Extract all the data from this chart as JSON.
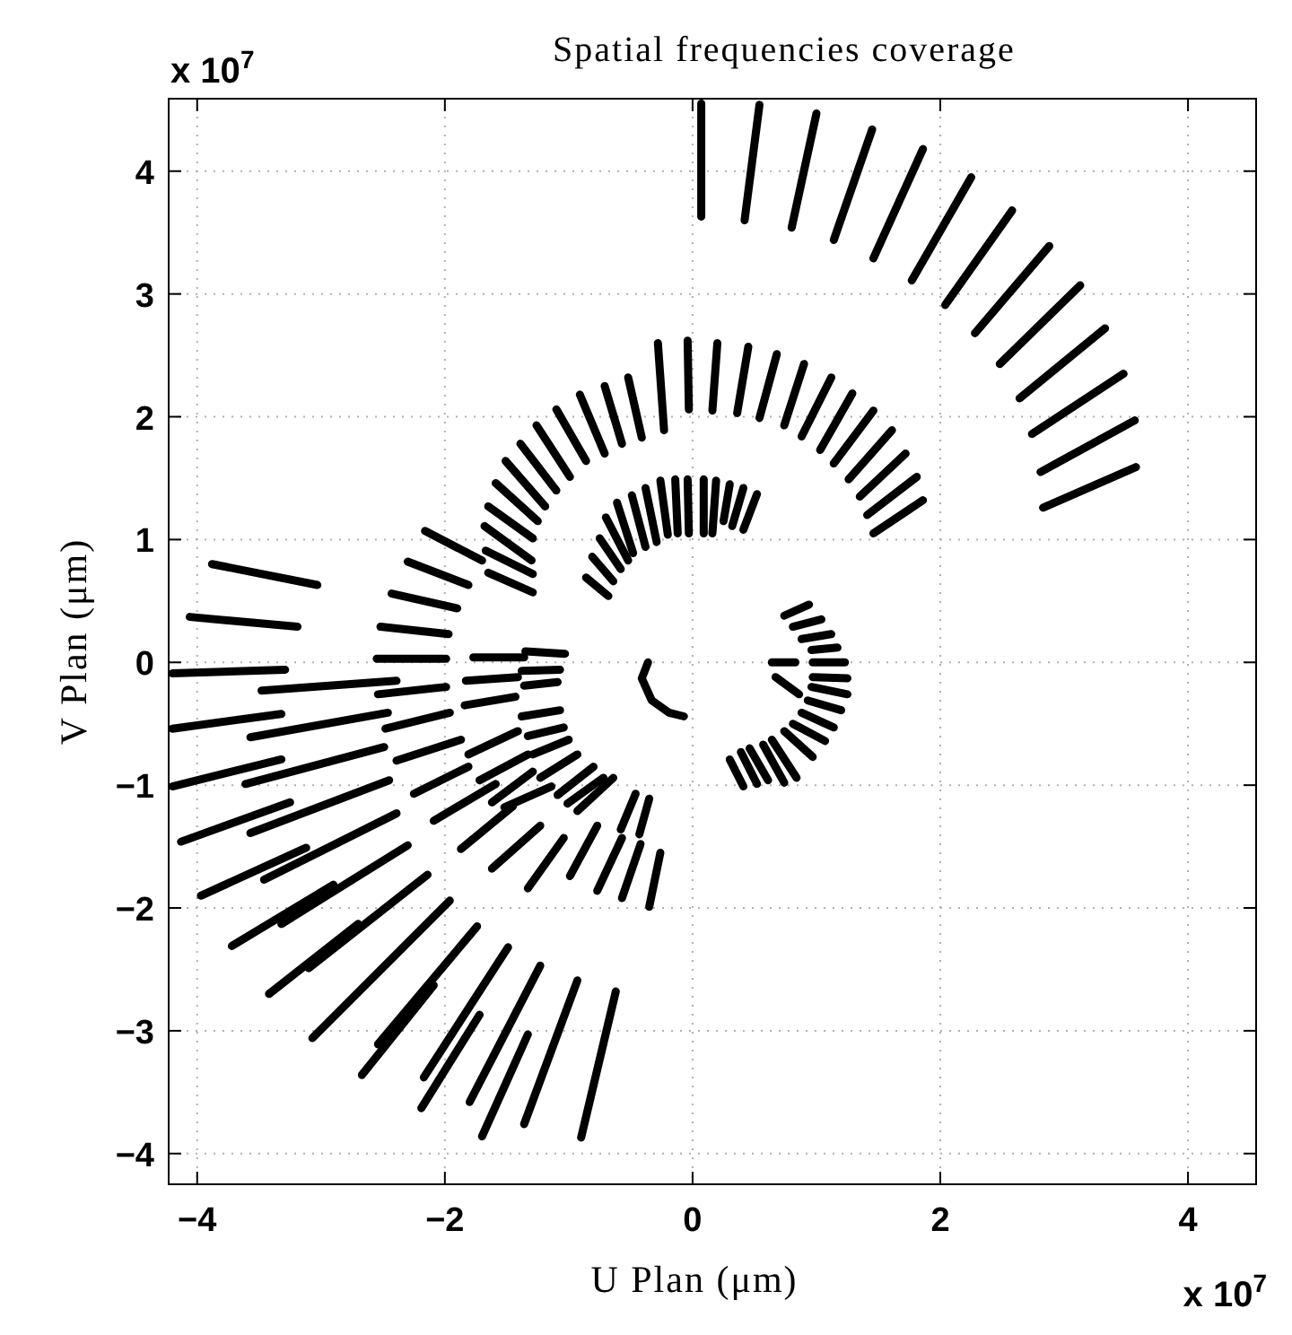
{
  "chart_data": {
    "type": "line",
    "title": "Spatial frequencies coverage",
    "xlabel": "U Plan (μm)",
    "ylabel": "V Plan (μm)",
    "annotations": [
      "x 10$^{7}$",
      "x 10$^{7}$"
    ],
    "xlim": [
      -4.23,
      4.55
    ],
    "ylim": [
      -4.25,
      4.59
    ],
    "xticks": [
      {
        "value": -4,
        "label": "−4"
      },
      {
        "value": -2,
        "label": "−2"
      },
      0,
      2,
      4
    ],
    "yticks": [
      {
        "value": -4,
        "label": "−4"
      },
      {
        "value": -3,
        "label": "−3"
      },
      {
        "value": -2,
        "label": "−2"
      },
      {
        "value": -1,
        "label": "−1"
      },
      0,
      1,
      2,
      3,
      4
    ],
    "grid": true,
    "marker": "none",
    "line_style": "solid",
    "color": "#000000",
    "series": [
      {
        "x": [
          0.07,
          0.07
        ],
        "values": [
          4.55,
          3.63
        ]
      },
      {
        "x": [
          0.54,
          0.42
        ],
        "values": [
          4.54,
          3.6
        ]
      },
      {
        "x": [
          1.0,
          0.8
        ],
        "values": [
          4.47,
          3.54
        ]
      },
      {
        "x": [
          1.45,
          1.14
        ],
        "values": [
          4.34,
          3.44
        ]
      },
      {
        "x": [
          1.86,
          1.46
        ],
        "values": [
          4.18,
          3.29
        ]
      },
      {
        "x": [
          2.25,
          1.77
        ],
        "values": [
          3.95,
          3.11
        ]
      },
      {
        "x": [
          2.58,
          2.04
        ],
        "values": [
          3.68,
          2.91
        ]
      },
      {
        "x": [
          2.88,
          2.28
        ],
        "values": [
          3.39,
          2.68
        ]
      },
      {
        "x": [
          3.13,
          2.48
        ],
        "values": [
          3.07,
          2.43
        ]
      },
      {
        "x": [
          3.33,
          2.64
        ],
        "values": [
          2.72,
          2.15
        ]
      },
      {
        "x": [
          3.48,
          2.74
        ],
        "values": [
          2.35,
          1.86
        ]
      },
      {
        "x": [
          3.57,
          2.81
        ],
        "values": [
          1.97,
          1.55
        ]
      },
      {
        "x": [
          3.58,
          2.83
        ],
        "values": [
          1.59,
          1.26
        ]
      },
      {
        "x": [
          -0.04,
          -0.03
        ],
        "values": [
          2.62,
          2.06
        ]
      },
      {
        "x": [
          0.2,
          0.16
        ],
        "values": [
          2.6,
          2.05
        ]
      },
      {
        "x": [
          0.45,
          0.36
        ],
        "values": [
          2.57,
          2.03
        ]
      },
      {
        "x": [
          0.68,
          0.54
        ],
        "values": [
          2.51,
          1.99
        ]
      },
      {
        "x": [
          0.9,
          0.74
        ],
        "values": [
          2.43,
          1.93
        ]
      },
      {
        "x": [
          1.12,
          0.88
        ],
        "values": [
          2.32,
          1.84
        ]
      },
      {
        "x": [
          1.29,
          1.03
        ],
        "values": [
          2.19,
          1.73
        ]
      },
      {
        "x": [
          1.46,
          1.14
        ],
        "values": [
          2.05,
          1.62
        ]
      },
      {
        "x": [
          1.61,
          1.26
        ],
        "values": [
          1.89,
          1.49
        ]
      },
      {
        "x": [
          1.72,
          1.35
        ],
        "values": [
          1.7,
          1.35
        ]
      },
      {
        "x": [
          1.81,
          1.41
        ],
        "values": [
          1.51,
          1.2
        ]
      },
      {
        "x": [
          1.86,
          1.46
        ],
        "values": [
          1.32,
          1.05
        ]
      },
      {
        "x": [
          -0.28,
          -0.23
        ],
        "values": [
          2.6,
          1.89
        ]
      },
      {
        "x": [
          -0.52,
          -0.41
        ],
        "values": [
          2.32,
          1.83
        ]
      },
      {
        "x": [
          -0.71,
          -0.57
        ],
        "values": [
          2.25,
          1.78
        ]
      },
      {
        "x": [
          -0.91,
          -0.71
        ],
        "values": [
          2.18,
          1.7
        ]
      },
      {
        "x": [
          -1.1,
          -0.86
        ],
        "values": [
          2.06,
          1.64
        ]
      },
      {
        "x": [
          -1.26,
          -0.99
        ],
        "values": [
          1.93,
          1.51
        ]
      },
      {
        "x": [
          -1.39,
          -1.1
        ],
        "values": [
          1.78,
          1.4
        ]
      },
      {
        "x": [
          -1.51,
          -1.19
        ],
        "values": [
          1.64,
          1.27
        ]
      },
      {
        "x": [
          -1.59,
          -1.25
        ],
        "values": [
          1.46,
          1.15
        ]
      },
      {
        "x": [
          -1.65,
          -1.29
        ],
        "values": [
          1.27,
          1.01
        ]
      },
      {
        "x": [
          -1.68,
          -1.3
        ],
        "values": [
          1.11,
          0.83
        ]
      },
      {
        "x": [
          -1.67,
          -1.29
        ],
        "values": [
          0.91,
          0.72
        ]
      },
      {
        "x": [
          -1.65,
          -1.29
        ],
        "values": [
          0.73,
          0.57
        ]
      },
      {
        "x": [
          -2.16,
          -1.7
        ],
        "values": [
          1.07,
          0.83
        ]
      },
      {
        "x": [
          -2.3,
          -1.81
        ],
        "values": [
          0.82,
          0.63
        ]
      },
      {
        "x": [
          -2.43,
          -1.9
        ],
        "values": [
          0.56,
          0.44
        ]
      },
      {
        "x": [
          -2.52,
          -1.97
        ],
        "values": [
          0.29,
          0.23
        ]
      },
      {
        "x": [
          -2.55,
          -1.99
        ],
        "values": [
          0.03,
          0.03
        ]
      },
      {
        "x": [
          -1.77,
          -1.36
        ],
        "values": [
          0.04,
          0.04
        ]
      },
      {
        "x": [
          -1.35,
          -1.03
        ],
        "values": [
          0.09,
          0.07
        ]
      },
      {
        "x": [
          -3.88,
          -3.03
        ],
        "values": [
          0.8,
          0.63
        ]
      },
      {
        "x": [
          -4.06,
          -3.19
        ],
        "values": [
          0.37,
          0.29
        ]
      },
      {
        "x": [
          -0.04,
          -0.03
        ],
        "values": [
          1.49,
          1.05
        ]
      },
      {
        "x": [
          0.09,
          0.09
        ],
        "values": [
          1.49,
          1.05
        ]
      },
      {
        "x": [
          0.19,
          0.16
        ],
        "values": [
          1.48,
          1.05
        ]
      },
      {
        "x": [
          0.3,
          0.25
        ],
        "values": [
          1.45,
          1.15
        ]
      },
      {
        "x": [
          0.41,
          0.32
        ],
        "values": [
          1.42,
          1.11
        ]
      },
      {
        "x": [
          0.52,
          0.41
        ],
        "values": [
          1.37,
          1.08
        ]
      },
      {
        "x": [
          -0.14,
          -0.12
        ],
        "values": [
          1.49,
          1.05
        ]
      },
      {
        "x": [
          -0.26,
          -0.2
        ],
        "values": [
          1.48,
          1.04
        ]
      },
      {
        "x": [
          -0.38,
          -0.29
        ],
        "values": [
          1.42,
          0.98
        ]
      },
      {
        "x": [
          -0.49,
          -0.38
        ],
        "values": [
          1.36,
          0.94
        ]
      },
      {
        "x": [
          -0.61,
          -0.48
        ],
        "values": [
          1.3,
          0.89
        ]
      },
      {
        "x": [
          -0.7,
          -0.52
        ],
        "values": [
          1.18,
          0.83
        ]
      },
      {
        "x": [
          -0.75,
          -0.58
        ],
        "values": [
          1.01,
          0.76
        ]
      },
      {
        "x": [
          -0.81,
          -0.64
        ],
        "values": [
          0.86,
          0.66
        ]
      },
      {
        "x": [
          -0.86,
          -0.68
        ],
        "values": [
          0.69,
          0.54
        ]
      },
      {
        "x": [
          -0.36,
          -0.41,
          -0.33,
          -0.19,
          -0.07
        ],
        "values": [
          0,
          -0.13,
          -0.31,
          -0.41,
          -0.44
        ]
      },
      {
        "x": [
          0.74,
          0.94
        ],
        "values": [
          0.38,
          0.47
        ]
      },
      {
        "x": [
          0.81,
          1.04
        ],
        "values": [
          0.29,
          0.35
        ]
      },
      {
        "x": [
          0.88,
          1.12
        ],
        "values": [
          0.19,
          0.23
        ]
      },
      {
        "x": [
          0.96,
          1.17
        ],
        "values": [
          0.1,
          0.12
        ]
      },
      {
        "x": [
          0.97,
          1.23
        ],
        "values": [
          0,
          0
        ]
      },
      {
        "x": [
          0.97,
          1.25
        ],
        "values": [
          -0.12,
          -0.13
        ]
      },
      {
        "x": [
          0.96,
          1.25
        ],
        "values": [
          -0.2,
          -0.26
        ]
      },
      {
        "x": [
          0.93,
          1.2
        ],
        "values": [
          -0.31,
          -0.39
        ]
      },
      {
        "x": [
          0.88,
          1.14
        ],
        "values": [
          -0.41,
          -0.53
        ]
      },
      {
        "x": [
          0.81,
          1.07
        ],
        "values": [
          -0.5,
          -0.64
        ]
      },
      {
        "x": [
          0.74,
          0.97
        ],
        "values": [
          -0.56,
          -0.77
        ]
      },
      {
        "x": [
          0.64,
          0.84
        ],
        "values": [
          -0.63,
          -0.94
        ]
      },
      {
        "x": [
          0.57,
          0.74
        ],
        "values": [
          -0.67,
          -0.98
        ]
      },
      {
        "x": [
          0.46,
          0.61
        ],
        "values": [
          -0.7,
          -0.96
        ]
      },
      {
        "x": [
          0.39,
          0.52
        ],
        "values": [
          -0.73,
          -0.99
        ]
      },
      {
        "x": [
          0.3,
          0.41
        ],
        "values": [
          -0.79,
          -1.01
        ]
      },
      {
        "x": [
          0.64,
          0.83
        ],
        "values": [
          0,
          0
        ]
      },
      {
        "x": [
          0.67,
          0.86
        ],
        "values": [
          -0.12,
          -0.26
        ]
      },
      {
        "x": [
          -4.2,
          -3.29
        ],
        "values": [
          -0.09,
          -0.06
        ]
      },
      {
        "x": [
          -3.48,
          -2.39
        ],
        "values": [
          -0.23,
          -0.15
        ]
      },
      {
        "x": [
          -2.54,
          -1.99
        ],
        "values": [
          -0.26,
          -0.2
        ]
      },
      {
        "x": [
          -1.83,
          -1.41
        ],
        "values": [
          -0.15,
          -0.12
        ]
      },
      {
        "x": [
          -1.38,
          -1.07
        ],
        "values": [
          -0.07,
          -0.06
        ]
      },
      {
        "x": [
          -1.36,
          -1.09
        ],
        "values": [
          -0.19,
          -0.16
        ]
      },
      {
        "x": [
          -4.2,
          -3.32
        ],
        "values": [
          -0.54,
          -0.42
        ]
      },
      {
        "x": [
          -3.57,
          -2.46
        ],
        "values": [
          -0.61,
          -0.41
        ]
      },
      {
        "x": [
          -2.48,
          -1.96
        ],
        "values": [
          -0.54,
          -0.41
        ]
      },
      {
        "x": [
          -1.84,
          -1.43
        ],
        "values": [
          -0.35,
          -0.28
        ]
      },
      {
        "x": [
          -4.2,
          -3.32
        ],
        "values": [
          -1.01,
          -0.79
        ]
      },
      {
        "x": [
          -3.61,
          -2.49
        ],
        "values": [
          -0.99,
          -0.69
        ]
      },
      {
        "x": [
          -2.39,
          -1.87
        ],
        "values": [
          -0.8,
          -0.63
        ]
      },
      {
        "x": [
          -1.81,
          -1.41
        ],
        "values": [
          -0.75,
          -0.56
        ]
      },
      {
        "x": [
          -1.38,
          -1.07
        ],
        "values": [
          -0.44,
          -0.39
        ]
      },
      {
        "x": [
          -1.33,
          -1.04
        ],
        "values": [
          -0.6,
          -0.53
        ]
      },
      {
        "x": [
          -4.13,
          -3.25
        ],
        "values": [
          -1.46,
          -1.14
        ]
      },
      {
        "x": [
          -3.57,
          -2.45
        ],
        "values": [
          -1.39,
          -0.96
        ]
      },
      {
        "x": [
          -2.25,
          -1.81
        ],
        "values": [
          -1.07,
          -0.85
        ]
      },
      {
        "x": [
          -1.72,
          -1.33
        ],
        "values": [
          -0.96,
          -0.75
        ]
      },
      {
        "x": [
          -1.29,
          -1.0
        ],
        "values": [
          -0.75,
          -0.63
        ]
      },
      {
        "x": [
          -3.97,
          -3.12
        ],
        "values": [
          -1.9,
          -1.51
        ]
      },
      {
        "x": [
          -3.46,
          -2.39
        ],
        "values": [
          -1.77,
          -1.23
        ]
      },
      {
        "x": [
          -2.09,
          -1.59
        ],
        "values": [
          -1.29,
          -0.99
        ]
      },
      {
        "x": [
          -1.62,
          -1.29
        ],
        "values": [
          -1.14,
          -0.89
        ]
      },
      {
        "x": [
          -1.23,
          -0.93
        ],
        "values": [
          -0.94,
          -0.75
        ]
      },
      {
        "x": [
          -3.72,
          -2.9
        ],
        "values": [
          -2.31,
          -1.81
        ]
      },
      {
        "x": [
          -3.32,
          -2.3
        ],
        "values": [
          -2.13,
          -1.49
        ]
      },
      {
        "x": [
          -1.87,
          -1.45
        ],
        "values": [
          -1.52,
          -1.17
        ]
      },
      {
        "x": [
          -1.52,
          -1.14
        ],
        "values": [
          -1.18,
          -1.01
        ]
      },
      {
        "x": [
          -1.09,
          -0.8
        ],
        "values": [
          -1.08,
          -0.85
        ]
      },
      {
        "x": [
          -3.42,
          -2.7
        ],
        "values": [
          -2.7,
          -2.13
        ]
      },
      {
        "x": [
          -3.1,
          -2.14
        ],
        "values": [
          -2.49,
          -1.73
        ]
      },
      {
        "x": [
          -1.62,
          -1.23
        ],
        "values": [
          -1.68,
          -1.33
        ]
      },
      {
        "x": [
          -1.01,
          -0.72
        ],
        "values": [
          -1.15,
          -0.94
        ]
      },
      {
        "x": [
          -3.07,
          -1.96
        ],
        "values": [
          -3.06,
          -1.94
        ]
      },
      {
        "x": [
          -1.33,
          -1.04
        ],
        "values": [
          -1.84,
          -1.43
        ]
      },
      {
        "x": [
          -0.93,
          -0.64
        ],
        "values": [
          -1.21,
          -0.94
        ]
      },
      {
        "x": [
          -2.67,
          -2.09
        ],
        "values": [
          -3.36,
          -2.63
        ]
      },
      {
        "x": [
          -2.54,
          -1.74
        ],
        "values": [
          -3.11,
          -2.15
        ]
      },
      {
        "x": [
          -0.99,
          -0.77
        ],
        "values": [
          -1.74,
          -1.33
        ]
      },
      {
        "x": [
          -0.77,
          -0.57
        ],
        "values": [
          -1.86,
          -1.43
        ]
      },
      {
        "x": [
          -2.19,
          -1.72
        ],
        "values": [
          -3.63,
          -2.87
        ]
      },
      {
        "x": [
          -2.17,
          -1.49
        ],
        "values": [
          -3.38,
          -2.32
        ]
      },
      {
        "x": [
          -0.58,
          -0.46
        ],
        "values": [
          -1.36,
          -1.07
        ]
      },
      {
        "x": [
          -0.57,
          -0.42
        ],
        "values": [
          -1.92,
          -1.48
        ]
      },
      {
        "x": [
          -0.43,
          -0.35
        ],
        "values": [
          -1.4,
          -1.11
        ]
      },
      {
        "x": [
          -0.35,
          -0.26
        ],
        "values": [
          -1.99,
          -1.55
        ]
      },
      {
        "x": [
          -1.8,
          -1.23
        ],
        "values": [
          -3.58,
          -2.47
        ]
      },
      {
        "x": [
          -1.7,
          -1.33
        ],
        "values": [
          -3.86,
          -3.03
        ]
      },
      {
        "x": [
          -1.36,
          -0.93
        ],
        "values": [
          -3.76,
          -2.59
        ]
      },
      {
        "x": [
          -0.9,
          -0.62
        ],
        "values": [
          -3.87,
          -2.68
        ]
      }
    ]
  }
}
